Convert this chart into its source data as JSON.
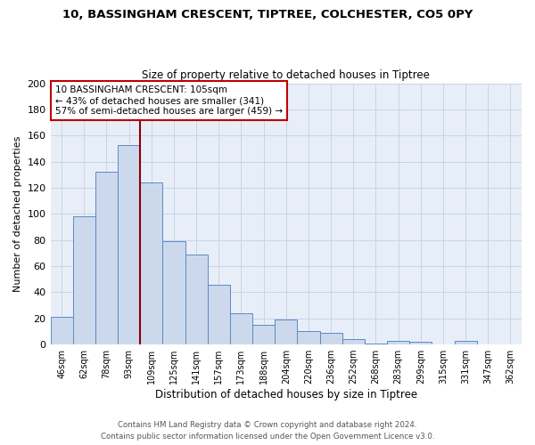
{
  "title": "10, BASSINGHAM CRESCENT, TIPTREE, COLCHESTER, CO5 0PY",
  "subtitle": "Size of property relative to detached houses in Tiptree",
  "xlabel": "Distribution of detached houses by size in Tiptree",
  "ylabel": "Number of detached properties",
  "bar_labels": [
    "46sqm",
    "62sqm",
    "78sqm",
    "93sqm",
    "109sqm",
    "125sqm",
    "141sqm",
    "157sqm",
    "173sqm",
    "188sqm",
    "204sqm",
    "220sqm",
    "236sqm",
    "252sqm",
    "268sqm",
    "283sqm",
    "299sqm",
    "315sqm",
    "331sqm",
    "347sqm",
    "362sqm"
  ],
  "bar_values": [
    21,
    98,
    132,
    153,
    124,
    79,
    69,
    46,
    24,
    15,
    19,
    10,
    9,
    4,
    1,
    3,
    2,
    0,
    3,
    0,
    0
  ],
  "bar_color": "#ccd9ed",
  "bar_edge_color": "#5b8ac5",
  "property_line_color": "#8b0000",
  "annotation_text": "10 BASSINGHAM CRESCENT: 105sqm\n← 43% of detached houses are smaller (341)\n57% of semi-detached houses are larger (459) →",
  "annotation_box_color": "#ffffff",
  "annotation_box_edge": "#c00000",
  "ylim": [
    0,
    200
  ],
  "yticks": [
    0,
    20,
    40,
    60,
    80,
    100,
    120,
    140,
    160,
    180,
    200
  ],
  "grid_color": "#c8d4e8",
  "footer_line1": "Contains HM Land Registry data © Crown copyright and database right 2024.",
  "footer_line2": "Contains public sector information licensed under the Open Government Licence v3.0.",
  "background_color": "#ffffff",
  "axes_background": "#e8eef8"
}
